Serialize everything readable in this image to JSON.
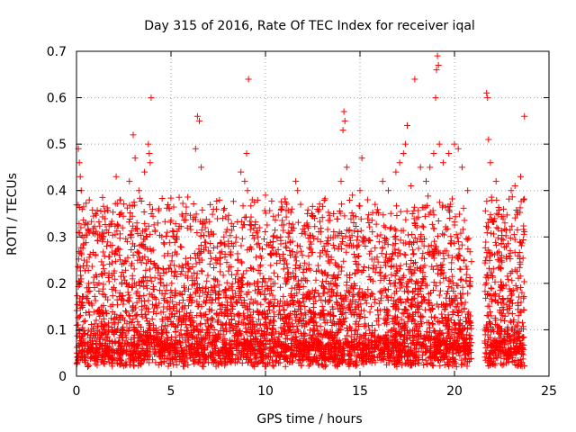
{
  "chart_data": {
    "type": "scatter",
    "title": "Day 315 of 2016, Rate Of TEC Index for receiver iqal",
    "xlabel": "GPS time / hours",
    "ylabel": "ROTI / TECUs",
    "xlim": [
      0,
      25
    ],
    "ylim": [
      0,
      0.7
    ],
    "x_ticks": [
      0,
      5,
      10,
      15,
      20,
      25
    ],
    "y_ticks": [
      0,
      0.1,
      0.2,
      0.3,
      0.4,
      0.5,
      0.6,
      0.7
    ],
    "x_tick_labels": [
      "0",
      "5",
      "10",
      "15",
      "20",
      "25"
    ],
    "y_tick_labels": [
      "0",
      "0.1",
      "0.2",
      "0.3",
      "0.4",
      "0.5",
      "0.6",
      "0.7"
    ],
    "grid": true,
    "marker": "+",
    "color": "#ff0000",
    "data_coverage_hours": [
      [
        0,
        20.9
      ],
      [
        21.6,
        23.7
      ]
    ],
    "series": [
      {
        "name": "ROTI",
        "points": [
          [
            0.1,
            0.49
          ],
          [
            0.15,
            0.46
          ],
          [
            0.2,
            0.43
          ],
          [
            0.25,
            0.4
          ],
          [
            0.3,
            0.36
          ],
          [
            0.5,
            0.33
          ],
          [
            0.7,
            0.31
          ],
          [
            1.0,
            0.35
          ],
          [
            1.3,
            0.3
          ],
          [
            1.6,
            0.28
          ],
          [
            2.1,
            0.43
          ],
          [
            2.3,
            0.38
          ],
          [
            2.8,
            0.42
          ],
          [
            3.0,
            0.52
          ],
          [
            3.1,
            0.47
          ],
          [
            3.3,
            0.4
          ],
          [
            3.6,
            0.44
          ],
          [
            3.8,
            0.5
          ],
          [
            3.85,
            0.48
          ],
          [
            3.9,
            0.46
          ],
          [
            3.95,
            0.6
          ],
          [
            4.3,
            0.33
          ],
          [
            4.8,
            0.31
          ],
          [
            5.3,
            0.3
          ],
          [
            5.8,
            0.35
          ],
          [
            6.3,
            0.49
          ],
          [
            6.4,
            0.56
          ],
          [
            6.5,
            0.55
          ],
          [
            6.6,
            0.45
          ],
          [
            6.8,
            0.33
          ],
          [
            7.4,
            0.36
          ],
          [
            7.8,
            0.3
          ],
          [
            8.3,
            0.28
          ],
          [
            8.7,
            0.44
          ],
          [
            8.9,
            0.42
          ],
          [
            9.0,
            0.48
          ],
          [
            9.05,
            0.4
          ],
          [
            9.1,
            0.64
          ],
          [
            9.3,
            0.38
          ],
          [
            9.6,
            0.3
          ],
          [
            10.0,
            0.39
          ],
          [
            10.4,
            0.29
          ],
          [
            10.8,
            0.3
          ],
          [
            11.2,
            0.3
          ],
          [
            11.6,
            0.42
          ],
          [
            11.7,
            0.4
          ],
          [
            12.2,
            0.33
          ],
          [
            12.6,
            0.34
          ],
          [
            13.1,
            0.28
          ],
          [
            13.6,
            0.35
          ],
          [
            14.0,
            0.42
          ],
          [
            14.1,
            0.53
          ],
          [
            14.15,
            0.57
          ],
          [
            14.2,
            0.55
          ],
          [
            14.3,
            0.45
          ],
          [
            14.6,
            0.39
          ],
          [
            15.0,
            0.4
          ],
          [
            15.1,
            0.47
          ],
          [
            15.4,
            0.38
          ],
          [
            15.8,
            0.37
          ],
          [
            16.2,
            0.42
          ],
          [
            16.5,
            0.4
          ],
          [
            16.9,
            0.44
          ],
          [
            17.1,
            0.46
          ],
          [
            17.3,
            0.48
          ],
          [
            17.4,
            0.5
          ],
          [
            17.5,
            0.54
          ],
          [
            17.7,
            0.41
          ],
          [
            17.9,
            0.64
          ],
          [
            18.2,
            0.45
          ],
          [
            18.5,
            0.42
          ],
          [
            18.7,
            0.45
          ],
          [
            18.9,
            0.48
          ],
          [
            19.0,
            0.6
          ],
          [
            19.05,
            0.66
          ],
          [
            19.1,
            0.69
          ],
          [
            19.15,
            0.67
          ],
          [
            19.2,
            0.5
          ],
          [
            19.4,
            0.46
          ],
          [
            19.7,
            0.48
          ],
          [
            20.0,
            0.5
          ],
          [
            20.2,
            0.49
          ],
          [
            20.4,
            0.45
          ],
          [
            20.7,
            0.4
          ],
          [
            21.7,
            0.61
          ],
          [
            21.75,
            0.6
          ],
          [
            21.8,
            0.51
          ],
          [
            21.9,
            0.46
          ],
          [
            22.2,
            0.42
          ],
          [
            22.6,
            0.36
          ],
          [
            23.0,
            0.4
          ],
          [
            23.2,
            0.41
          ],
          [
            23.5,
            0.43
          ],
          [
            23.7,
            0.56
          ]
        ]
      }
    ]
  }
}
